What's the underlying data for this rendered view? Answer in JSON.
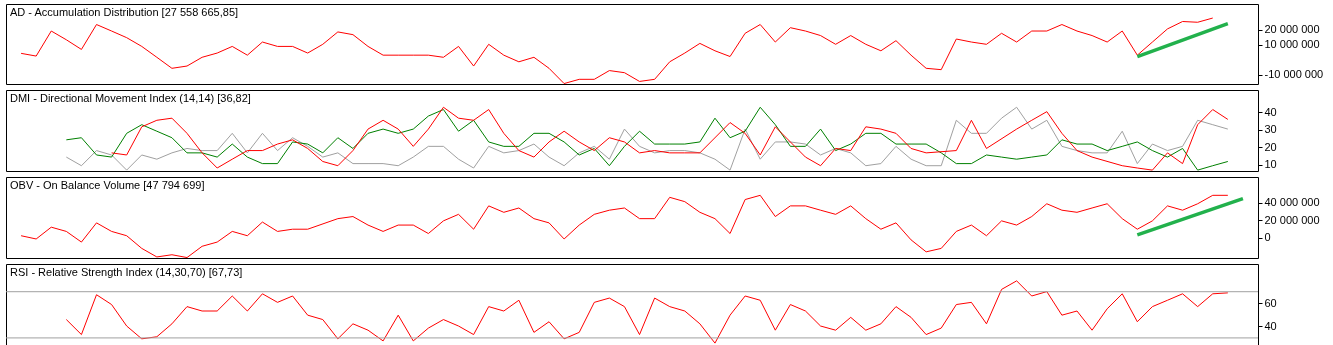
{
  "chart_data": [
    {
      "type": "line",
      "title": "AD - Accumulation Distribution [27 558 665,85]",
      "tick_labels": "y",
      "ylim": [
        -16000000.0,
        37000000.0
      ],
      "categories": [
        null,
        null,
        null,
        null,
        null,
        null,
        null,
        null,
        null,
        null,
        null,
        null,
        null,
        null,
        null,
        null,
        null,
        null,
        null,
        null,
        null,
        null,
        null,
        null,
        null,
        null,
        null,
        null,
        null,
        null,
        null,
        null,
        null,
        null,
        null,
        null,
        null,
        null,
        null,
        null,
        null,
        null,
        null,
        null,
        null,
        null,
        null,
        null,
        null,
        null,
        null,
        null,
        null,
        null,
        null,
        null,
        null,
        null,
        null,
        null,
        null,
        null,
        null,
        null,
        null,
        null,
        null,
        null,
        null,
        null,
        null,
        null,
        null,
        null,
        null,
        null,
        null,
        null,
        null,
        null,
        null,
        null
      ],
      "yticks": [
        {
          "value": 20000000,
          "label": "20 000 000"
        },
        {
          "value": 10000000,
          "label": "10 000 000"
        },
        {
          "value": -10000000,
          "label": "-10 000 000"
        }
      ],
      "series": [
        {
          "color": "#ff0000",
          "values": [
            4300000.0,
            2500000.0,
            19100000.0,
            13300000.0,
            6900000.0,
            23400000.0,
            19100000.0,
            14700000.0,
            8900000.0,
            1700000.0,
            -5600000.0,
            -4100000.0,
            1700000.0,
            4500000.0,
            8900000.0,
            3100000.0,
            11800000.0,
            8900000.0,
            8900000.0,
            4500000.0,
            10300000.0,
            18500000.0,
            16700000.0,
            8900000.0,
            3100000.0,
            3100000.0,
            3100000.0,
            3100000.0,
            1700000.0,
            8900000.0,
            -4100000.0,
            10300000.0,
            3100000.0,
            -1300000.0,
            1700000.0,
            -5600000.0,
            -15700000.0,
            -12900000.0,
            -12900000.0,
            -7100000.0,
            -8500000.0,
            -14300000.0,
            -12900000.0,
            -1300000.0,
            4500000.0,
            10900000.0,
            6000000.0,
            2200000.0,
            17600000.0,
            23400000.0,
            11800000.0,
            21300000.0,
            19100000.0,
            16100000.0,
            10300000.0,
            16100000.0,
            10300000.0,
            6000000.0,
            12700000.0,
            3100000.0,
            -5600000.0,
            -6500000.0,
            13800000.0,
            11800000.0,
            10300000.0,
            17600000.0,
            11800000.0,
            19100000.0,
            19100000.0,
            23400000.0,
            19100000.0,
            16100000.0,
            11800000.0,
            19100000.0,
            3100000.0,
            11800000.0,
            20500000.0,
            25400000.0,
            24900000.0,
            27700000.0,
            null,
            null
          ]
        },
        {
          "color": "#22b14c",
          "values": [
            null,
            null,
            null,
            null,
            null,
            null,
            null,
            null,
            null,
            null,
            null,
            null,
            null,
            null,
            null,
            null,
            null,
            null,
            null,
            null,
            null,
            null,
            null,
            null,
            null,
            null,
            null,
            null,
            null,
            null,
            null,
            null,
            null,
            null,
            null,
            null,
            null,
            null,
            null,
            null,
            null,
            null,
            null,
            null,
            null,
            null,
            null,
            null,
            null,
            null,
            null,
            null,
            null,
            null,
            null,
            null,
            null,
            null,
            null,
            null,
            null,
            null,
            null,
            null,
            null,
            null,
            null,
            null,
            null,
            null,
            null,
            null,
            null,
            null,
            2200000.0,
            null,
            null,
            null,
            null,
            null,
            24000000.0,
            null
          ]
        }
      ]
    },
    {
      "type": "line",
      "title": "DMI - Directional Movement Index (14,14) [36,82]",
      "tick_labels": "y",
      "ylim": [
        6.5,
        52.5
      ],
      "yticks": [
        10,
        20,
        30,
        40
      ],
      "categories": [
        null,
        null,
        null,
        null,
        null,
        null,
        null,
        null,
        null,
        null,
        null,
        null,
        null,
        null,
        null,
        null,
        null,
        null,
        null,
        null,
        null,
        null,
        null,
        null,
        null,
        null,
        null,
        null,
        null,
        null,
        null,
        null,
        null,
        null,
        null,
        null,
        null,
        null,
        null,
        null,
        null,
        null,
        null,
        null,
        null,
        null,
        null,
        null,
        null,
        null,
        null,
        null,
        null,
        null,
        null,
        null,
        null,
        null,
        null,
        null,
        null,
        null,
        null,
        null,
        null,
        null,
        null,
        null,
        null,
        null,
        null,
        null,
        null,
        null,
        null,
        null,
        null,
        null,
        null,
        null,
        null,
        null
      ],
      "series": [
        {
          "color": "#a0a0a0",
          "values": [
            null,
            null,
            null,
            14.4,
            9.5,
            18.1,
            15.6,
            7,
            15.6,
            13.2,
            16.8,
            19.3,
            18.1,
            18.1,
            27.9,
            16.8,
            27.9,
            18.1,
            25.4,
            20.5,
            14.4,
            16.8,
            10.7,
            10.7,
            10.7,
            9.5,
            14.4,
            20.5,
            20.5,
            13.2,
            8.2,
            20.5,
            16.8,
            18.1,
            21.8,
            14.4,
            9.5,
            16.8,
            20.5,
            13.2,
            30.3,
            20.5,
            16.8,
            18.1,
            18.1,
            16.8,
            13.2,
            7,
            30.3,
            13.2,
            23,
            23,
            21.8,
            15.6,
            19.3,
            16.8,
            9.5,
            10.7,
            20.5,
            13.2,
            9.5,
            9.5,
            35.3,
            27.9,
            27.9,
            36.5,
            42.7,
            30.3,
            35.3,
            20.5,
            18.1,
            16.8,
            16.8,
            29.1,
            10.7,
            21.8,
            18.1,
            20.5,
            35.3,
            32.8,
            30.3,
            null
          ]
        },
        {
          "color": "#008000",
          "values": [
            null,
            null,
            null,
            24.2,
            25.4,
            15.6,
            14.4,
            27.9,
            32.8,
            29.1,
            25.4,
            16.8,
            16.8,
            14.4,
            21.8,
            14.4,
            10.7,
            10.7,
            23,
            21.8,
            16.8,
            25.4,
            19.3,
            27.9,
            30.3,
            27.9,
            30.3,
            37.7,
            41.4,
            29.1,
            35.3,
            23,
            20.5,
            20.5,
            27.9,
            27.9,
            23,
            15.6,
            19.3,
            9.5,
            20.5,
            29.1,
            21.8,
            21.8,
            21.8,
            23,
            36.5,
            25.4,
            29.1,
            42.7,
            32.8,
            20.5,
            20.5,
            30.3,
            18.1,
            21.8,
            27.9,
            27.9,
            21.8,
            21.8,
            21.8,
            16.8,
            10.7,
            10.7,
            15.6,
            14.4,
            13.2,
            14.4,
            15.6,
            24.2,
            21.8,
            21.8,
            18.1,
            20.5,
            23,
            18.1,
            14.4,
            19.3,
            7,
            9.5,
            11.9,
            null
          ]
        },
        {
          "color": "#ff0000",
          "values": [
            null,
            null,
            null,
            null,
            null,
            null,
            16.8,
            15.6,
            31.6,
            35.3,
            36.5,
            27.9,
            16.8,
            8.2,
            13.2,
            18.1,
            18.1,
            21.8,
            24.2,
            19.3,
            11.9,
            9.5,
            18.1,
            30.3,
            35.3,
            30.3,
            20.5,
            30.3,
            42.7,
            36.5,
            35.3,
            41.4,
            27.9,
            18.1,
            14.4,
            23,
            29.1,
            23,
            18.1,
            25.4,
            23,
            16.8,
            18.1,
            16.8,
            16.8,
            16.8,
            null,
            34,
            27.9,
            15.6,
            31.6,
            23,
            14.4,
            9.5,
            19.3,
            18.1,
            31.6,
            30.3,
            27.9,
            19.3,
            16.8,
            null,
            18.1,
            35.3,
            19.3,
            null,
            30.3,
            35.3,
            40.2,
            27.9,
            18.1,
            14.4,
            null,
            9.5,
            8.2,
            7,
            16.8,
            10.7,
            32.8,
            41.4,
            35.8,
            null
          ]
        }
      ]
    },
    {
      "type": "line",
      "title": "OBV - On Balance Volume [47 794 699]",
      "tick_labels": "y",
      "ylim": [
        -23000000.0,
        69000000.0
      ],
      "categories": [
        null,
        null,
        null,
        null,
        null,
        null,
        null,
        null,
        null,
        null,
        null,
        null,
        null,
        null,
        null,
        null,
        null,
        null,
        null,
        null,
        null,
        null,
        null,
        null,
        null,
        null,
        null,
        null,
        null,
        null,
        null,
        null,
        null,
        null,
        null,
        null,
        null,
        null,
        null,
        null,
        null,
        null,
        null,
        null,
        null,
        null,
        null,
        null,
        null,
        null,
        null,
        null,
        null,
        null,
        null,
        null,
        null,
        null,
        null,
        null,
        null,
        null,
        null,
        null,
        null,
        null,
        null,
        null,
        null,
        null,
        null,
        null,
        null,
        null,
        null,
        null,
        null,
        null,
        null,
        null,
        null,
        null
      ],
      "yticks": [
        {
          "value": 40000000,
          "label": "40 000 000"
        },
        {
          "value": 20000000,
          "label": "20 000 000"
        },
        0
      ],
      "series": [
        {
          "color": "#ff0000",
          "values": [
            2300000.0,
            -1400000.0,
            12000000.0,
            7200000.0,
            -4900000.0,
            16900000.0,
            7200000.0,
            2300000.0,
            -12100000.0,
            -21800000.0,
            -19300000.0,
            -22500000.0,
            -9700000.0,
            -4900000.0,
            7200000.0,
            2300000.0,
            17800000.0,
            7200000.0,
            9700000.0,
            9700000.0,
            null,
            21700000.0,
            24100000.0,
            14400000.0,
            7200000.0,
            14400000.0,
            14400000.0,
            4800000.0,
            19200000.0,
            26600000.0,
            9700000.0,
            36200000.0,
            28900000.0,
            33800000.0,
            21700000.0,
            16900000.0,
            -1400000.0,
            14400000.0,
            26600000.0,
            31300000.0,
            33800000.0,
            21700000.0,
            21700000.0,
            45900000.0,
            41000000.0,
            28900000.0,
            21700000.0,
            4800000.0,
            43400000.0,
            48200000.0,
            24100000.0,
            36200000.0,
            36200000.0,
            31300000.0,
            26600000.0,
            36200000.0,
            21700000.0,
            9700000.0,
            16900000.0,
            -2400000.0,
            -16000000.0,
            -12100000.0,
            7200000.0,
            14400000.0,
            2300000.0,
            19200000.0,
            14400000.0,
            24100000.0,
            38600000.0,
            31300000.0,
            28900000.0,
            33800000.0,
            38600000.0,
            21700000.0,
            9700000.0,
            19200000.0,
            36200000.0,
            31300000.0,
            38600000.0,
            48200000.0,
            48200000.0,
            null
          ]
        },
        {
          "color": "#22b14c",
          "values": [
            null,
            null,
            null,
            null,
            null,
            null,
            null,
            null,
            null,
            null,
            null,
            null,
            null,
            null,
            null,
            null,
            null,
            null,
            null,
            null,
            null,
            null,
            null,
            null,
            null,
            null,
            null,
            null,
            null,
            null,
            null,
            null,
            null,
            null,
            null,
            null,
            null,
            null,
            null,
            null,
            null,
            null,
            null,
            null,
            null,
            null,
            null,
            null,
            null,
            null,
            null,
            null,
            null,
            null,
            null,
            null,
            null,
            null,
            null,
            null,
            null,
            null,
            null,
            null,
            null,
            null,
            null,
            null,
            null,
            null,
            null,
            null,
            null,
            null,
            3300000.0,
            null,
            null,
            null,
            null,
            null,
            null,
            44400000.0
          ]
        }
      ]
    },
    {
      "type": "line",
      "title": "RSI - Relative Strength Index (14,30,70) [67,73]",
      "tick_labels": "y",
      "ylim": [
        23,
        94
      ],
      "yticks": [
        40,
        60
      ],
      "categories": [
        null,
        null,
        null,
        null,
        null,
        null,
        null,
        null,
        null,
        null,
        null,
        null,
        null,
        null,
        null,
        null,
        null,
        null,
        null,
        null,
        null,
        null,
        null,
        null,
        null,
        null,
        null,
        null,
        null,
        null,
        null,
        null,
        null,
        null,
        null,
        null,
        null,
        null,
        null,
        null,
        null,
        null,
        null,
        null,
        null,
        null,
        null,
        null,
        null,
        null,
        null,
        null,
        null,
        null,
        null,
        null,
        null,
        null,
        null,
        null,
        null,
        null,
        null,
        null,
        null,
        null,
        null,
        null,
        null,
        null,
        null,
        null,
        null,
        null,
        null,
        null,
        null,
        null,
        null,
        null,
        null,
        null
      ],
      "ref_lines": [
        {
          "axis": "y",
          "value": 70,
          "color": "#a0a0a0"
        },
        {
          "axis": "y",
          "value": 30,
          "color": "#a0a0a0"
        }
      ],
      "series": [
        {
          "color": "#ff0000",
          "values": [
            null,
            null,
            null,
            45.9,
            32.9,
            67.4,
            58.9,
            40.3,
            29.2,
            31,
            42.2,
            57.1,
            53.3,
            53.3,
            66.3,
            53.3,
            68.2,
            60.8,
            66.3,
            49.7,
            45.9,
            29.2,
            42.2,
            36.7,
            27.4,
            49.7,
            27.4,
            38.5,
            45.9,
            40.3,
            32.9,
            57.1,
            53.3,
            62.6,
            34.8,
            44,
            29.2,
            34.8,
            60.8,
            64.5,
            57.1,
            32.9,
            64.5,
            57.1,
            53.3,
            42.2,
            25.5,
            49.7,
            66.3,
            62.6,
            36.7,
            58.9,
            53.3,
            40.3,
            36.7,
            47.8,
            36.7,
            42.2,
            57.1,
            47.8,
            32.9,
            38.5,
            58.9,
            60.8,
            42.2,
            72,
            79.4,
            66.3,
            70.1,
            49.7,
            53.3,
            36.7,
            55.2,
            68.2,
            44,
            57.1,
            62.6,
            68.2,
            57.1,
            68.2,
            69,
            null
          ]
        }
      ]
    }
  ]
}
